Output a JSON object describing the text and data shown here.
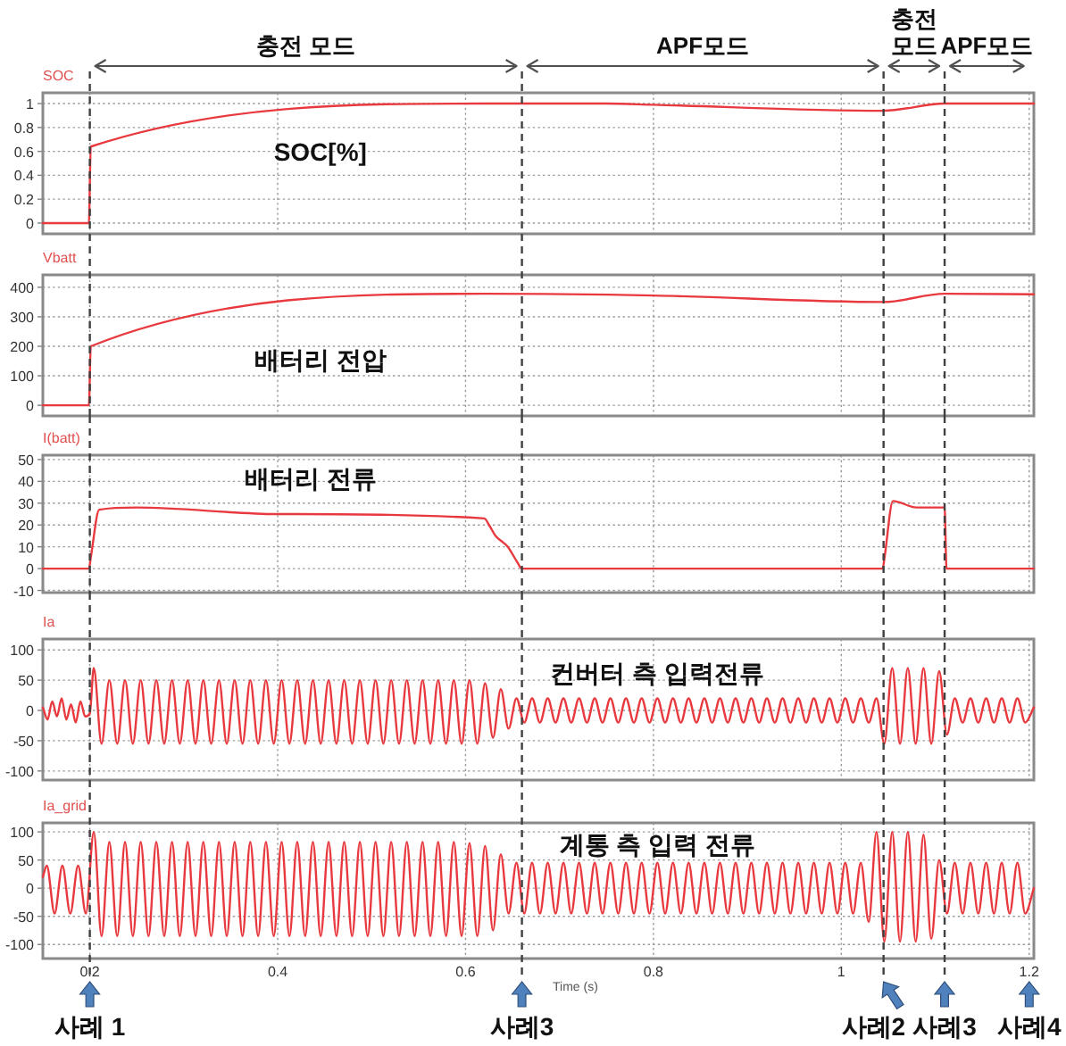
{
  "chart_data": [
    {
      "type": "line",
      "ylabel": "SOC",
      "xlim": [
        0.15,
        1.205
      ],
      "ylim": [
        -0.09,
        1.09
      ],
      "xticks": [
        0.2,
        0.4,
        0.6,
        0.8,
        1,
        1.2
      ],
      "yticks": [
        0,
        0.2,
        0.4,
        0.6,
        0.8,
        1
      ],
      "grid": true,
      "tick_labels": "y",
      "annotations": [
        "SOC[%]",
        "충전 모드",
        "APF모드",
        "충전 모드",
        "APF모드"
      ],
      "ref_lines": [
        {
          "axis": "x",
          "value": 0.2,
          "color": "#404040",
          "line_style": "dashed"
        },
        {
          "axis": "x",
          "value": 0.66,
          "color": "#404040",
          "line_style": "dashed"
        },
        {
          "axis": "x",
          "value": 1.045,
          "color": "#404040",
          "line_style": "dashed"
        },
        {
          "axis": "x",
          "value": 1.11,
          "color": "#404040",
          "line_style": "dashed"
        }
      ],
      "x": [
        0.15,
        0.199,
        0.201,
        0.62,
        0.75,
        0.8,
        1.045,
        1.11,
        1.205
      ],
      "series": [
        {
          "color": "#e8393f",
          "values": [
            0,
            0,
            0.64,
            1,
            1,
            0.99,
            0.94,
            1,
            1
          ]
        }
      ]
    },
    {
      "type": "line",
      "ylabel": "Vbatt",
      "xlim": [
        0.15,
        1.205
      ],
      "ylim": [
        -36,
        442
      ],
      "xticks": [
        0.2,
        0.4,
        0.6,
        0.8,
        1,
        1.2
      ],
      "yticks": [
        0,
        100,
        200,
        300,
        400
      ],
      "grid": true,
      "tick_labels": "y",
      "annotations": [
        "배터리 전압"
      ],
      "ref_lines": [
        {
          "axis": "x",
          "value": 0.2,
          "color": "#404040",
          "line_style": "dashed"
        },
        {
          "axis": "x",
          "value": 0.66,
          "color": "#404040",
          "line_style": "dashed"
        },
        {
          "axis": "x",
          "value": 1.045,
          "color": "#404040",
          "line_style": "dashed"
        },
        {
          "axis": "x",
          "value": 1.11,
          "color": "#404040",
          "line_style": "dashed"
        }
      ],
      "x": [
        0.15,
        0.199,
        0.201,
        0.62,
        0.8,
        1.045,
        1.11,
        1.205
      ],
      "series": [
        {
          "color": "#e8393f",
          "values": [
            0,
            0,
            200,
            378,
            372,
            350,
            378,
            376
          ]
        }
      ]
    },
    {
      "type": "line",
      "ylabel": "I(batt)",
      "xlim": [
        0.15,
        1.205
      ],
      "ylim": [
        -11,
        52
      ],
      "xticks": [
        0.2,
        0.4,
        0.6,
        0.8,
        1,
        1.2
      ],
      "yticks": [
        -10,
        0,
        10,
        20,
        30,
        40,
        50
      ],
      "grid": true,
      "tick_labels": "y",
      "annotations": [
        "배터리 전류"
      ],
      "ref_lines": [
        {
          "axis": "x",
          "value": 0.2,
          "color": "#404040",
          "line_style": "dashed"
        },
        {
          "axis": "x",
          "value": 0.66,
          "color": "#404040",
          "line_style": "dashed"
        },
        {
          "axis": "x",
          "value": 1.045,
          "color": "#404040",
          "line_style": "dashed"
        },
        {
          "axis": "x",
          "value": 1.11,
          "color": "#404040",
          "line_style": "dashed"
        }
      ],
      "x": [
        0.15,
        0.199,
        0.201,
        0.21,
        0.25,
        0.4,
        0.62,
        0.625,
        0.632,
        0.64,
        0.645,
        0.655,
        0.66,
        1.044,
        1.046,
        1.055,
        1.08,
        1.11,
        1.112,
        1.205
      ],
      "series": [
        {
          "color": "#e8393f",
          "values": [
            0,
            0,
            5,
            27,
            28,
            25,
            23,
            20,
            15,
            12,
            10,
            3,
            0,
            0,
            5,
            31,
            28,
            28,
            0,
            0
          ]
        }
      ]
    },
    {
      "type": "line",
      "ylabel": "Ia",
      "xlim": [
        0.15,
        1.205
      ],
      "ylim": [
        -115,
        118
      ],
      "xticks": [
        0.2,
        0.4,
        0.6,
        0.8,
        1,
        1.2
      ],
      "yticks": [
        -100,
        -50,
        0,
        50,
        100
      ],
      "grid": true,
      "tick_labels": "y",
      "annotations": [
        "컨버터 측 입력전류"
      ],
      "ref_lines": [
        {
          "axis": "x",
          "value": 0.2,
          "color": "#404040",
          "line_style": "dashed"
        },
        {
          "axis": "x",
          "value": 0.66,
          "color": "#404040",
          "line_style": "dashed"
        },
        {
          "axis": "x",
          "value": 1.045,
          "color": "#404040",
          "line_style": "dashed"
        },
        {
          "axis": "x",
          "value": 1.11,
          "color": "#404040",
          "line_style": "dashed"
        }
      ],
      "x": [
        0.15,
        0.155,
        0.16,
        0.165,
        0.17,
        0.175,
        0.18,
        0.185,
        0.19,
        0.195,
        0.2,
        0.2042,
        0.2125,
        0.2208,
        0.2292,
        0.2375,
        0.2458,
        0.2542,
        0.2625,
        0.2708,
        0.2792,
        0.2875,
        0.2958,
        0.3042,
        0.3125,
        0.3208,
        0.3292,
        0.3375,
        0.3458,
        0.3542,
        0.3625,
        0.3708,
        0.3792,
        0.3875,
        0.3958,
        0.4042,
        0.4125,
        0.4208,
        0.4292,
        0.4375,
        0.4458,
        0.4542,
        0.4625,
        0.4708,
        0.4792,
        0.4875,
        0.4958,
        0.5042,
        0.5125,
        0.5208,
        0.5292,
        0.5375,
        0.5458,
        0.5542,
        0.5625,
        0.5708,
        0.5792,
        0.5875,
        0.5958,
        0.6042,
        0.6125,
        0.6208,
        0.6292,
        0.6375,
        0.6458,
        0.6542,
        0.6625,
        0.6708,
        0.6792,
        0.6875,
        0.6958,
        0.7042,
        0.7125,
        0.7208,
        0.7292,
        0.7375,
        0.7458,
        0.7542,
        0.7625,
        0.7708,
        0.7792,
        0.7875,
        0.7958,
        0.8042,
        0.8125,
        0.8208,
        0.8292,
        0.8375,
        0.8458,
        0.8542,
        0.8625,
        0.8708,
        0.8792,
        0.8875,
        0.8958,
        0.9042,
        0.9125,
        0.9208,
        0.9292,
        0.9375,
        0.9458,
        0.9542,
        0.9625,
        0.9708,
        0.9792,
        0.9875,
        0.9958,
        1.0042,
        1.0125,
        1.0208,
        1.0292,
        1.0375,
        1.0458,
        1.0542,
        1.0625,
        1.0708,
        1.0792,
        1.0875,
        1.0958,
        1.1042,
        1.1125,
        1.1208,
        1.1292,
        1.1375,
        1.1458,
        1.1542,
        1.1625,
        1.1708,
        1.1792,
        1.1875,
        1.1958,
        1.205
      ],
      "series": [
        {
          "color": "#e8393f",
          "values": [
            5,
            -15,
            15,
            -10,
            20,
            -15,
            10,
            -20,
            15,
            -10,
            -5,
            70,
            -55,
            50,
            -55,
            50,
            -55,
            50,
            -55,
            50,
            -55,
            50,
            -55,
            50,
            -55,
            50,
            -55,
            50,
            -55,
            50,
            -55,
            50,
            -55,
            50,
            -55,
            50,
            -55,
            50,
            -55,
            50,
            -55,
            50,
            -55,
            50,
            -55,
            50,
            -55,
            50,
            -55,
            50,
            -55,
            50,
            -55,
            50,
            -55,
            50,
            -55,
            50,
            -55,
            50,
            -55,
            45,
            -45,
            35,
            -30,
            20,
            -20,
            20,
            -20,
            20,
            -20,
            20,
            -20,
            20,
            -20,
            20,
            -20,
            20,
            -20,
            20,
            -20,
            20,
            -20,
            20,
            -20,
            20,
            -20,
            20,
            -20,
            20,
            -20,
            20,
            -20,
            20,
            -20,
            20,
            -20,
            20,
            -20,
            20,
            -20,
            20,
            -20,
            20,
            -20,
            20,
            -20,
            20,
            -20,
            20,
            -20,
            20,
            -55,
            70,
            -55,
            70,
            -55,
            70,
            -55,
            65,
            -40,
            20,
            -20,
            20,
            -20,
            20,
            -20,
            20,
            -20,
            20,
            -20,
            5
          ]
        }
      ]
    },
    {
      "type": "line",
      "ylabel": "Ia_grid",
      "xlabel": "Time (s)",
      "xlim": [
        0.15,
        1.205
      ],
      "ylim": [
        -125,
        116
      ],
      "xticks": [
        0.2,
        0.4,
        0.6,
        0.8,
        1,
        1.2
      ],
      "yticks": [
        -100,
        -50,
        0,
        50,
        100
      ],
      "grid": true,
      "annotations": [
        "계통 측 입력 전류",
        "사례 1",
        "사례3",
        "사례2",
        "사례3",
        "사례4"
      ],
      "ref_lines": [
        {
          "axis": "x",
          "value": 0.2,
          "color": "#404040",
          "line_style": "dashed"
        },
        {
          "axis": "x",
          "value": 0.66,
          "color": "#404040",
          "line_style": "dashed"
        },
        {
          "axis": "x",
          "value": 1.045,
          "color": "#404040",
          "line_style": "dashed"
        },
        {
          "axis": "x",
          "value": 1.11,
          "color": "#404040",
          "line_style": "dashed"
        }
      ],
      "x": [
        0.15,
        0.1542,
        0.1625,
        0.1708,
        0.1792,
        0.1875,
        0.1958,
        0.2042,
        0.2125,
        0.2208,
        0.2292,
        0.2375,
        0.2458,
        0.2542,
        0.2625,
        0.2708,
        0.2792,
        0.2875,
        0.2958,
        0.3042,
        0.3125,
        0.3208,
        0.3292,
        0.3375,
        0.3458,
        0.3542,
        0.3625,
        0.3708,
        0.3792,
        0.3875,
        0.3958,
        0.4042,
        0.4125,
        0.4208,
        0.4292,
        0.4375,
        0.4458,
        0.4542,
        0.4625,
        0.4708,
        0.4792,
        0.4875,
        0.4958,
        0.5042,
        0.5125,
        0.5208,
        0.5292,
        0.5375,
        0.5458,
        0.5542,
        0.5625,
        0.5708,
        0.5792,
        0.5875,
        0.5958,
        0.6042,
        0.6125,
        0.6208,
        0.6292,
        0.6375,
        0.6458,
        0.6542,
        0.6625,
        0.6708,
        0.6792,
        0.6875,
        0.6958,
        0.7042,
        0.7125,
        0.7208,
        0.7292,
        0.7375,
        0.7458,
        0.7542,
        0.7625,
        0.7708,
        0.7792,
        0.7875,
        0.7958,
        0.8042,
        0.8125,
        0.8208,
        0.8292,
        0.8375,
        0.8458,
        0.8542,
        0.8625,
        0.8708,
        0.8792,
        0.8875,
        0.8958,
        0.9042,
        0.9125,
        0.9208,
        0.9292,
        0.9375,
        0.9458,
        0.9542,
        0.9625,
        0.9708,
        0.9792,
        0.9875,
        0.9958,
        1.0042,
        1.0125,
        1.0208,
        1.0292,
        1.0375,
        1.0458,
        1.0542,
        1.0625,
        1.0708,
        1.0792,
        1.0875,
        1.0958,
        1.1042,
        1.1125,
        1.1208,
        1.1292,
        1.1375,
        1.1458,
        1.1542,
        1.1625,
        1.1708,
        1.1792,
        1.1875,
        1.1958,
        1.205
      ],
      "series": [
        {
          "color": "#e8393f",
          "values": [
            20,
            40,
            -45,
            40,
            -45,
            40,
            -45,
            100,
            -85,
            82,
            -85,
            82,
            -85,
            82,
            -85,
            82,
            -85,
            82,
            -85,
            82,
            -85,
            82,
            -85,
            82,
            -85,
            82,
            -85,
            82,
            -85,
            82,
            -85,
            82,
            -85,
            82,
            -85,
            82,
            -85,
            82,
            -85,
            82,
            -85,
            82,
            -85,
            82,
            -85,
            82,
            -85,
            82,
            -85,
            82,
            -85,
            82,
            -85,
            82,
            -85,
            80,
            -85,
            75,
            -75,
            60,
            -45,
            45,
            -45,
            45,
            -45,
            45,
            -45,
            45,
            -45,
            45,
            -45,
            45,
            -45,
            45,
            -45,
            45,
            -45,
            45,
            -45,
            45,
            -45,
            45,
            -45,
            45,
            -45,
            45,
            -45,
            45,
            -45,
            45,
            -45,
            45,
            -45,
            45,
            -45,
            45,
            -45,
            45,
            -45,
            45,
            -45,
            45,
            -45,
            45,
            -45,
            45,
            -60,
            100,
            -95,
            100,
            -95,
            100,
            -95,
            95,
            -90,
            50,
            -45,
            45,
            -45,
            45,
            -45,
            45,
            -45,
            45,
            -45,
            45,
            -45,
            0
          ]
        }
      ]
    }
  ]
}
